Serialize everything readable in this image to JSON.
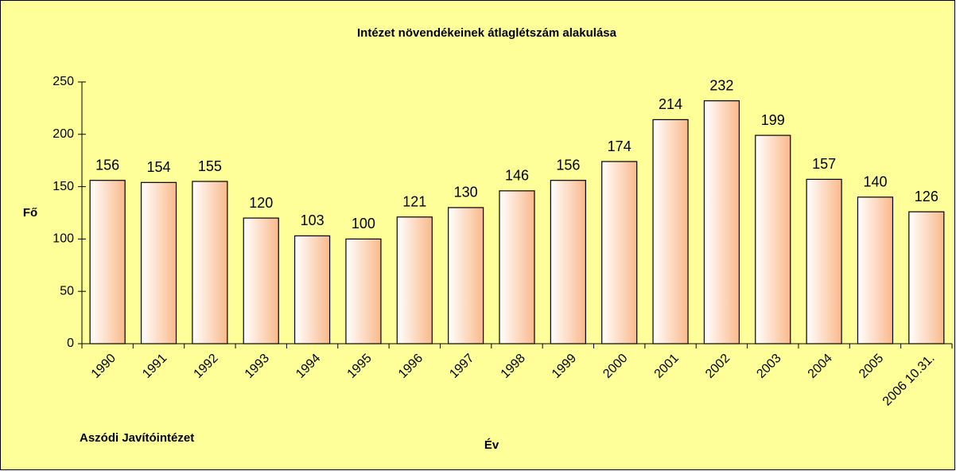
{
  "chart_data": {
    "type": "bar",
    "title": "Intézet növendékeinek átlaglétszám alakulása",
    "y_label": "Fő",
    "x_label": "Év",
    "annotation": "Aszódi Javítóintézet",
    "categories": [
      "1990",
      "1991",
      "1992",
      "1993",
      "1994",
      "1995",
      "1996",
      "1997",
      "1998",
      "1999",
      "2000",
      "2001",
      "2002",
      "2003",
      "2004",
      "2005",
      "2006 10.31."
    ],
    "values": [
      156,
      154,
      155,
      120,
      103,
      100,
      121,
      130,
      146,
      156,
      174,
      214,
      232,
      199,
      157,
      140,
      126
    ],
    "color": "#f9b98a",
    "ylim": [
      0,
      250
    ],
    "yticks": [
      0,
      50,
      100,
      150,
      200,
      250
    ],
    "grid": false
  }
}
